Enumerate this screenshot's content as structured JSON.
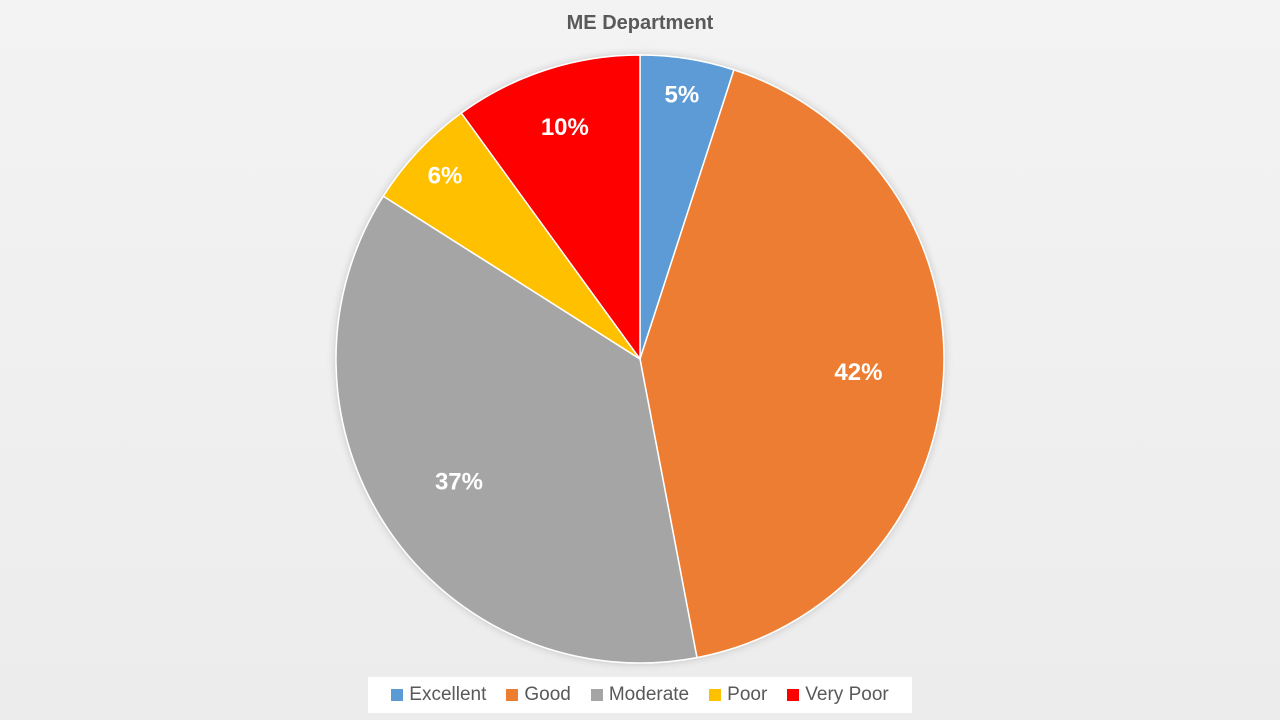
{
  "chart_data": {
    "type": "pie",
    "title": "ME Department",
    "categories": [
      "Excellent",
      "Good",
      "Moderate",
      "Poor",
      "Very Poor"
    ],
    "values": [
      5,
      42,
      37,
      6,
      10
    ],
    "labels": [
      "5%",
      "42%",
      "37%",
      "6%",
      "10%"
    ],
    "colors": [
      "#5b9bd5",
      "#ed7d31",
      "#a5a5a5",
      "#ffc000",
      "#ff0000"
    ],
    "legend_position": "bottom"
  }
}
